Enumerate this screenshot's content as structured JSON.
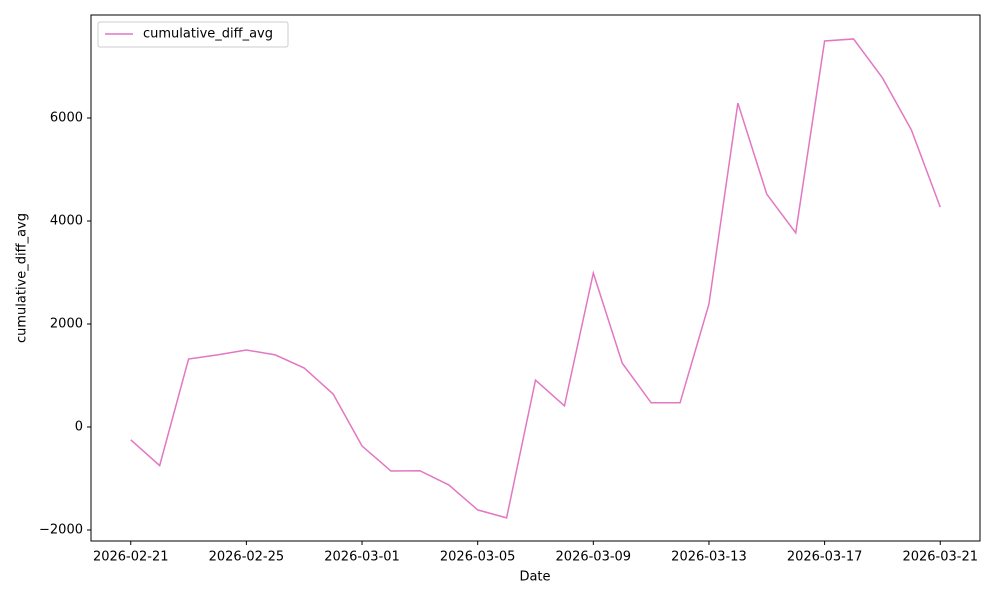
{
  "chart_data": {
    "type": "line",
    "x_label": "Date",
    "y_label": "cumulative_diff_avg",
    "x": [
      "2026-02-21",
      "2026-02-22",
      "2026-02-23",
      "2026-02-24",
      "2026-02-25",
      "2026-02-26",
      "2026-02-27",
      "2026-02-28",
      "2026-03-01",
      "2026-03-02",
      "2026-03-03",
      "2026-03-04",
      "2026-03-05",
      "2026-03-06",
      "2026-03-07",
      "2026-03-08",
      "2026-03-09",
      "2026-03-10",
      "2026-03-11",
      "2026-03-12",
      "2026-03-13",
      "2026-03-14",
      "2026-03-15",
      "2026-03-16",
      "2026-03-17",
      "2026-03-18",
      "2026-03-19",
      "2026-03-20",
      "2026-03-21"
    ],
    "series": [
      {
        "name": "cumulative_diff_avg",
        "color": "#e377c2",
        "values": [
          -250,
          -750,
          1320,
          1400,
          1495,
          1400,
          1145,
          640,
          -370,
          -855,
          -850,
          -1125,
          -1610,
          -1765,
          910,
          410,
          2990,
          1240,
          470,
          470,
          2390,
          6290,
          4520,
          3770,
          7495,
          7535,
          6780,
          5770,
          4270
        ]
      }
    ],
    "xlim": [
      "2026-02-19T15:00",
      "2026-03-22T09:00"
    ],
    "xticks": [
      "2026-02-21",
      "2026-02-25",
      "2026-03-01",
      "2026-03-05",
      "2026-03-09",
      "2026-03-13",
      "2026-03-17",
      "2026-03-21"
    ],
    "ylim": [
      -2214,
      8000
    ],
    "yticks": [
      {
        "value": -2000,
        "label": "−2000"
      },
      0,
      2000,
      4000,
      6000
    ],
    "legend": "upper left",
    "grid": false
  }
}
